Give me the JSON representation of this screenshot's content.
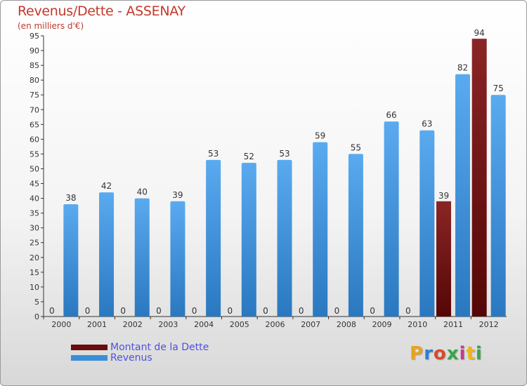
{
  "header": {
    "title": "Revenus/Dette - ASSENAY",
    "subtitle": "(en milliers d'€)"
  },
  "colors": {
    "debt": "#7a1414",
    "revenue": "#3a8fd6",
    "text": "#c0392b",
    "legend_text": "#5050e0"
  },
  "legend": {
    "items": [
      {
        "label": "Montant de la Dette",
        "color": "#6a0c0c"
      },
      {
        "label": "Revenus",
        "color": "#3a8fd6"
      }
    ]
  },
  "logo": {
    "text": "Proxiti",
    "letter_colors": [
      "#e8a31c",
      "#2f7fd0",
      "#d84a2a",
      "#3aa54a",
      "#c23b8e",
      "#f0b41c",
      "#3aa54a"
    ]
  },
  "chart_data": {
    "type": "bar",
    "categories": [
      "2000",
      "2001",
      "2002",
      "2003",
      "2004",
      "2005",
      "2006",
      "2007",
      "2008",
      "2009",
      "2010",
      "2011",
      "2012"
    ],
    "series": [
      {
        "name": "Montant de la Dette",
        "values": [
          0,
          0,
          0,
          0,
          0,
          0,
          0,
          0,
          0,
          0,
          0,
          39,
          94
        ]
      },
      {
        "name": "Revenus",
        "values": [
          38,
          42,
          40,
          39,
          53,
          52,
          53,
          59,
          55,
          66,
          63,
          82,
          75
        ]
      }
    ],
    "ylim": [
      0,
      95
    ],
    "yticks": [
      0,
      5,
      10,
      15,
      20,
      25,
      30,
      35,
      40,
      45,
      50,
      55,
      60,
      65,
      70,
      75,
      80,
      85,
      90,
      95
    ],
    "grid": false,
    "legend_position": "bottom-left"
  }
}
